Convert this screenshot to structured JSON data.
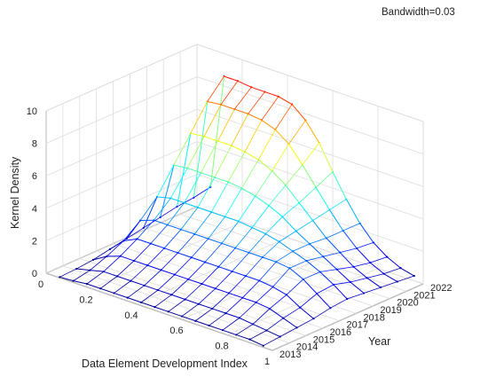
{
  "chart_data": {
    "type": "surface",
    "annotation": "Bandwidth=0.03",
    "xlabel": "Data Element Development Index",
    "ylabel": "Year",
    "zlabel": "Kernel Density",
    "x_ticks": [
      "0",
      "0.2",
      "0.4",
      "0.6",
      "0.8",
      "1"
    ],
    "y_ticks": [
      "2013",
      "2014",
      "2015",
      "2016",
      "2017",
      "2018",
      "2019",
      "2020",
      "2021",
      "2022"
    ],
    "z_ticks": [
      "0",
      "2",
      "4",
      "6",
      "8",
      "10"
    ],
    "xlim": [
      0,
      1
    ],
    "ylim": [
      2013,
      2022
    ],
    "zlim": [
      0,
      10
    ],
    "grid": true,
    "colormap": "jet",
    "x": [
      0.06,
      0.12,
      0.18,
      0.24,
      0.3,
      0.36,
      0.42,
      0.48,
      0.54,
      0.6,
      0.66,
      0.72,
      0.78,
      0.84,
      0.9,
      0.96
    ],
    "years": [
      2013,
      2014,
      2015,
      2016,
      2017,
      2018,
      2019,
      2020,
      2021,
      2022
    ],
    "density": [
      [
        0.05,
        0.1,
        0.2,
        0.2,
        0.2,
        0.2,
        0.2,
        0.2,
        0.2,
        0.2,
        0.2,
        0.2,
        0.2,
        0.2,
        0.2,
        0.1
      ],
      [
        0.1,
        0.3,
        0.5,
        0.5,
        0.5,
        0.5,
        0.5,
        0.5,
        0.5,
        0.5,
        0.5,
        0.5,
        0.5,
        0.4,
        0.3,
        0.2
      ],
      [
        0.2,
        0.7,
        1.0,
        1.0,
        1.0,
        1.0,
        1.0,
        1.0,
        1.0,
        1.0,
        1.0,
        1.0,
        1.0,
        0.9,
        0.6,
        0.3
      ],
      [
        0.4,
        1.2,
        1.6,
        1.6,
        1.6,
        1.6,
        1.6,
        1.6,
        1.6,
        1.6,
        1.6,
        1.6,
        1.5,
        1.3,
        0.8,
        0.4
      ],
      [
        0.6,
        2.0,
        2.3,
        2.3,
        2.3,
        2.3,
        2.3,
        2.3,
        2.3,
        2.3,
        2.3,
        2.3,
        2.2,
        1.8,
        1.2,
        0.6
      ],
      [
        0.8,
        3.0,
        3.2,
        3.2,
        3.2,
        3.2,
        3.2,
        3.2,
        3.1,
        3.0,
        2.8,
        2.5,
        2.2,
        1.8,
        1.3,
        0.7
      ],
      [
        1.0,
        4.5,
        4.6,
        4.6,
        4.6,
        4.6,
        4.5,
        4.3,
        4.0,
        3.6,
        3.0,
        2.5,
        2.0,
        1.5,
        1.0,
        0.6
      ],
      [
        1.2,
        6.0,
        6.1,
        6.1,
        6.1,
        6.0,
        5.8,
        5.4,
        4.8,
        4.0,
        3.2,
        2.4,
        1.8,
        1.2,
        0.8,
        0.5
      ],
      [
        1.3,
        7.5,
        7.6,
        7.6,
        7.6,
        7.5,
        7.2,
        6.6,
        5.6,
        4.5,
        3.4,
        2.4,
        1.6,
        1.0,
        0.6,
        0.4
      ],
      [
        1.5,
        8.6,
        8.6,
        8.5,
        8.5,
        8.5,
        8.3,
        7.6,
        6.5,
        5.0,
        3.6,
        2.4,
        1.5,
        0.9,
        0.5,
        0.3
      ]
    ]
  }
}
